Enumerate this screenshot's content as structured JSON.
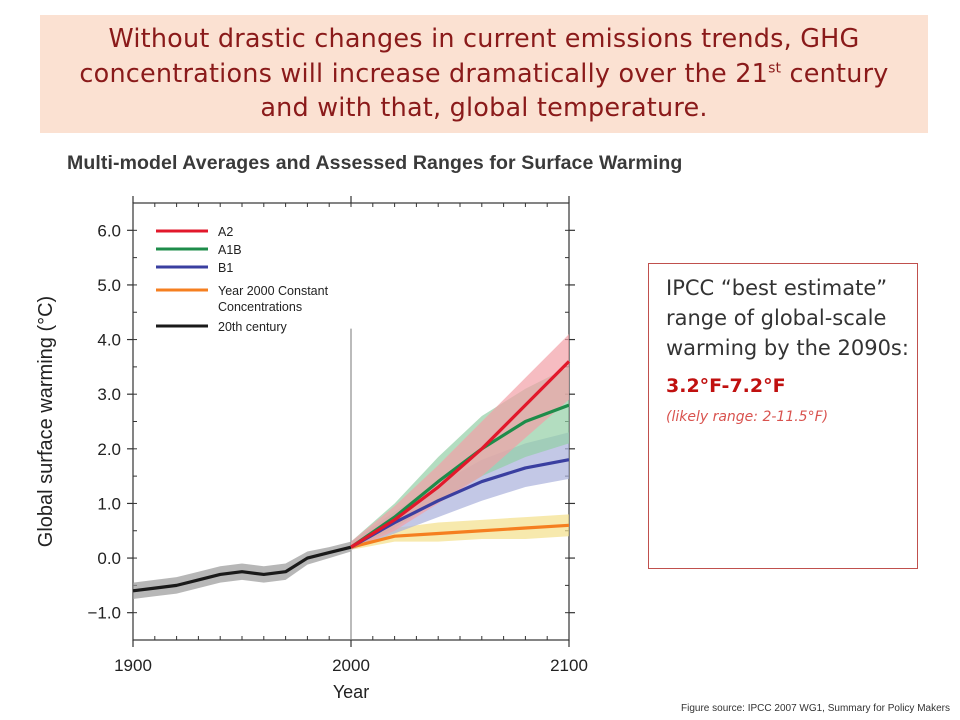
{
  "banner": {
    "text_before_sup": "Without drastic changes in current emissions trends, GHG concentrations will increase dramatically over the 21",
    "sup": "st",
    "text_after_sup": " century and with that, global temperature."
  },
  "callout": {
    "main_text": "IPCC “best estimate” range of global-scale warming by the 2090s:",
    "range_text": "3.2°F-7.2°F",
    "likely_text": "(likely range: 2-11.5°F)"
  },
  "source": "Figure source: IPCC 2007 WG1, Summary for Policy Makers",
  "colors": {
    "A2": "#e2182b",
    "A1B": "#1e8c4a",
    "B1": "#3a3fa0",
    "constant": "#f57f20",
    "20th": "#1a1a1a"
  },
  "chart_data": {
    "type": "line",
    "title": "Multi-model Averages and Assessed Ranges for Surface Warming",
    "xlabel": "Year",
    "ylabel": "Global surface warming (°C)",
    "xlim": [
      1900,
      2100
    ],
    "ylim": [
      -1.5,
      6.5
    ],
    "xticks": [
      1900,
      2000,
      2100
    ],
    "yticks": [
      -1.0,
      0.0,
      1.0,
      2.0,
      3.0,
      4.0,
      5.0,
      6.0
    ],
    "ytick_labels": [
      "−1.0",
      "0.0",
      "1.0",
      "2.0",
      "3.0",
      "4.0",
      "5.0",
      "6.0"
    ],
    "vline_x": 2000,
    "legend_position": "top-left",
    "series": [
      {
        "name": "A2",
        "color": "#e2182b",
        "band": "#f2a0a6",
        "x": [
          2000,
          2020,
          2040,
          2060,
          2080,
          2100
        ],
        "y": [
          0.2,
          0.7,
          1.3,
          2.0,
          2.8,
          3.6
        ],
        "lower": [
          0.15,
          0.5,
          1.0,
          1.5,
          2.2,
          2.9
        ],
        "upper": [
          0.3,
          0.95,
          1.7,
          2.5,
          3.3,
          4.1
        ]
      },
      {
        "name": "A1B",
        "color": "#1e8c4a",
        "band": "#93cfa5",
        "x": [
          2000,
          2020,
          2040,
          2060,
          2080,
          2100
        ],
        "y": [
          0.2,
          0.75,
          1.4,
          2.0,
          2.5,
          2.8
        ],
        "lower": [
          0.15,
          0.55,
          1.05,
          1.5,
          1.85,
          2.1
        ],
        "upper": [
          0.3,
          1.0,
          1.85,
          2.6,
          3.1,
          3.5
        ]
      },
      {
        "name": "B1",
        "color": "#3a3fa0",
        "band": "#aab0dc",
        "x": [
          2000,
          2020,
          2040,
          2060,
          2080,
          2100
        ],
        "y": [
          0.2,
          0.65,
          1.05,
          1.4,
          1.65,
          1.8
        ],
        "lower": [
          0.15,
          0.45,
          0.75,
          1.05,
          1.3,
          1.45
        ],
        "upper": [
          0.3,
          0.85,
          1.35,
          1.8,
          2.1,
          2.3
        ]
      },
      {
        "name": "Year 2000 Constant Concentrations",
        "color": "#f57f20",
        "band": "#f3e08a",
        "x": [
          2000,
          2020,
          2040,
          2060,
          2080,
          2100
        ],
        "y": [
          0.2,
          0.4,
          0.45,
          0.5,
          0.55,
          0.6
        ],
        "lower": [
          0.15,
          0.3,
          0.3,
          0.35,
          0.35,
          0.4
        ],
        "upper": [
          0.3,
          0.55,
          0.65,
          0.7,
          0.75,
          0.8
        ]
      },
      {
        "name": "20th century",
        "color": "#1a1a1a",
        "band": "#999999",
        "x": [
          1900,
          1910,
          1920,
          1930,
          1940,
          1950,
          1960,
          1970,
          1980,
          1990,
          2000
        ],
        "y": [
          -0.6,
          -0.55,
          -0.5,
          -0.4,
          -0.3,
          -0.25,
          -0.3,
          -0.25,
          0.0,
          0.1,
          0.2
        ],
        "lower": [
          -0.75,
          -0.7,
          -0.65,
          -0.55,
          -0.45,
          -0.4,
          -0.45,
          -0.4,
          -0.12,
          0.0,
          0.12
        ],
        "upper": [
          -0.45,
          -0.4,
          -0.35,
          -0.25,
          -0.15,
          -0.1,
          -0.15,
          -0.1,
          0.12,
          0.2,
          0.3
        ]
      }
    ]
  }
}
